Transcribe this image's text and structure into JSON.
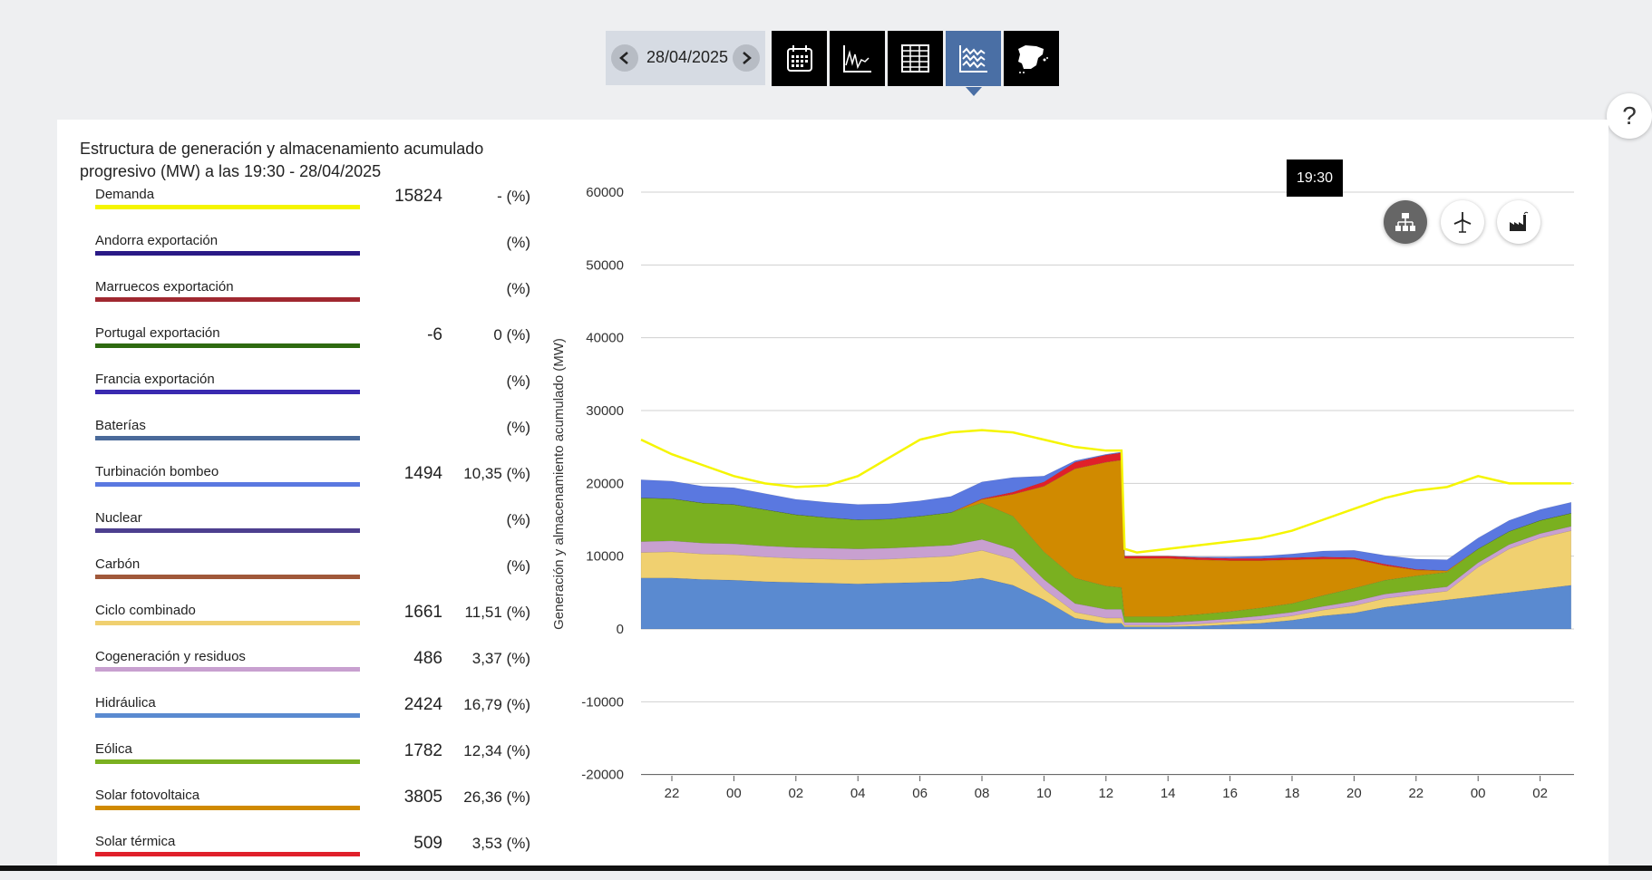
{
  "toolbar": {
    "date": "28/04/2025",
    "buttons": [
      "calendar-icon",
      "line-chart-icon",
      "table-icon",
      "stacked-area-icon",
      "spain-map-icon"
    ],
    "active_button": "stacked-area-icon"
  },
  "help": {
    "label": "?"
  },
  "panel": {
    "title_line1": "Estructura de generación y almacenamiento acumulado",
    "title_line2": "progresivo (MW) a las 19:30 - 28/04/2025"
  },
  "legend": [
    {
      "label": "Demanda",
      "value": "15824",
      "pct": "- (%)",
      "color": "#f5f500"
    },
    {
      "label": "Andorra exportación",
      "value": "",
      "pct": "(%)",
      "color": "#2a1a86"
    },
    {
      "label": "Marruecos exportación",
      "value": "",
      "pct": "(%)",
      "color": "#a02830"
    },
    {
      "label": "Portugal exportación",
      "value": "-6",
      "pct": "0 (%)",
      "color": "#2e6a10"
    },
    {
      "label": "Francia exportación",
      "value": "",
      "pct": "(%)",
      "color": "#3a2ab0"
    },
    {
      "label": "Baterías",
      "value": "",
      "pct": "(%)",
      "color": "#4a6a9a"
    },
    {
      "label": "Turbinación bombeo",
      "value": "1494",
      "pct": "10,35 (%)",
      "color": "#5a78e0"
    },
    {
      "label": "Nuclear",
      "value": "",
      "pct": "(%)",
      "color": "#4d3f8f"
    },
    {
      "label": "Carbón",
      "value": "",
      "pct": "(%)",
      "color": "#a0583a"
    },
    {
      "label": "Ciclo combinado",
      "value": "1661",
      "pct": "11,51 (%)",
      "color": "#f0d070"
    },
    {
      "label": "Cogeneración y residuos",
      "value": "486",
      "pct": "3,37 (%)",
      "color": "#c8a0d0"
    },
    {
      "label": "Hidráulica",
      "value": "2424",
      "pct": "16,79 (%)",
      "color": "#5a8ad0"
    },
    {
      "label": "Eólica",
      "value": "1782",
      "pct": "12,34 (%)",
      "color": "#7ab020"
    },
    {
      "label": "Solar fotovoltaica",
      "value": "3805",
      "pct": "26,36 (%)",
      "color": "#d08a00"
    },
    {
      "label": "Solar térmica",
      "value": "509",
      "pct": "3,53 (%)",
      "color": "#e0202a"
    }
  ],
  "tooltip": "19:30",
  "view_buttons": [
    {
      "icon": "network-icon",
      "active": true
    },
    {
      "icon": "wind-turbine-icon",
      "active": false
    },
    {
      "icon": "factory-icon",
      "active": false
    }
  ],
  "chart_data": {
    "type": "area",
    "ylabel": "Generación y almacenamiento acumulado (MW)",
    "ylim": [
      -20000,
      60000
    ],
    "yticks": [
      "60000",
      "50000",
      "40000",
      "30000",
      "20000",
      "10000",
      "0",
      "-10000",
      "-20000"
    ],
    "xticks": [
      "22",
      "00",
      "02",
      "04",
      "06",
      "08",
      "10",
      "12",
      "14",
      "16",
      "18",
      "20",
      "22",
      "00",
      "02"
    ],
    "x_hours": [
      21,
      22,
      23,
      24,
      25,
      26,
      27,
      28,
      29,
      30,
      31,
      32,
      33,
      34,
      35,
      36,
      36.5,
      36.6,
      37,
      38,
      39,
      40,
      41,
      42,
      43,
      44,
      45,
      46,
      47,
      48,
      49,
      50,
      51
    ],
    "series": [
      {
        "name": "Hidráulica",
        "color": "#5a8ad0",
        "values": [
          7000,
          7000,
          6800,
          6700,
          6500,
          6400,
          6300,
          6200,
          6300,
          6400,
          6500,
          7000,
          6000,
          4000,
          1500,
          800,
          800,
          300,
          300,
          300,
          400,
          600,
          800,
          1200,
          1800,
          2200,
          3000,
          3500,
          4000,
          4500,
          5000,
          5500,
          6000
        ]
      },
      {
        "name": "Ciclo combinado",
        "color": "#f0d070",
        "values": [
          3500,
          3600,
          3500,
          3500,
          3400,
          3300,
          3300,
          3300,
          3300,
          3400,
          3500,
          3800,
          3600,
          1500,
          800,
          700,
          700,
          200,
          200,
          200,
          300,
          400,
          500,
          600,
          800,
          1000,
          1200,
          1200,
          1200,
          4000,
          6000,
          7000,
          7500
        ]
      },
      {
        "name": "Cogeneración y residuos",
        "color": "#c8a0d0",
        "values": [
          1500,
          1500,
          1500,
          1500,
          1500,
          1500,
          1500,
          1500,
          1500,
          1500,
          1500,
          1500,
          1400,
          1300,
          1200,
          1200,
          1200,
          400,
          400,
          400,
          400,
          400,
          500,
          500,
          500,
          600,
          600,
          600,
          600,
          600,
          600,
          600,
          600
        ]
      },
      {
        "name": "Eólica",
        "color": "#7ab020",
        "values": [
          6000,
          5800,
          5500,
          5400,
          5000,
          4500,
          4200,
          4000,
          4000,
          4200,
          4500,
          5000,
          4500,
          3800,
          3500,
          3200,
          3000,
          800,
          800,
          800,
          900,
          1000,
          1100,
          1200,
          1500,
          1800,
          1900,
          2000,
          2000,
          1900,
          1800,
          1800,
          1800
        ]
      },
      {
        "name": "Solar fotovoltaica",
        "color": "#d08a00",
        "values": [
          0,
          0,
          0,
          0,
          0,
          0,
          0,
          0,
          0,
          0,
          0,
          500,
          3000,
          9000,
          15000,
          17000,
          17500,
          8000,
          8000,
          8000,
          7500,
          7000,
          6500,
          6000,
          5000,
          4000,
          2000,
          800,
          200,
          0,
          0,
          0,
          0
        ]
      },
      {
        "name": "Solar térmica",
        "color": "#e0202a",
        "values": [
          0,
          0,
          0,
          0,
          0,
          0,
          0,
          0,
          0,
          0,
          0,
          100,
          300,
          600,
          900,
          1000,
          1000,
          300,
          300,
          300,
          300,
          300,
          300,
          300,
          300,
          200,
          200,
          100,
          0,
          0,
          0,
          0,
          0
        ]
      },
      {
        "name": "Turbinación bombeo",
        "color": "#5a78e0",
        "values": [
          2500,
          2400,
          2300,
          2300,
          2200,
          2100,
          2100,
          2100,
          2100,
          2100,
          2200,
          2300,
          2000,
          800,
          200,
          100,
          100,
          0,
          0,
          0,
          100,
          200,
          300,
          500,
          800,
          1000,
          1200,
          1400,
          1500,
          1500,
          1500,
          1500,
          1500
        ]
      }
    ],
    "demand": {
      "name": "Demanda",
      "color": "#f5f500",
      "values": [
        26000,
        24000,
        22500,
        21000,
        20000,
        19500,
        19700,
        21000,
        23500,
        26000,
        27000,
        27300,
        27000,
        26000,
        25000,
        24500,
        24500,
        11000,
        10500,
        11000,
        11500,
        12000,
        12500,
        13500,
        15000,
        16500,
        18000,
        19000,
        19500,
        21000,
        20000,
        20000,
        20000
      ]
    }
  }
}
